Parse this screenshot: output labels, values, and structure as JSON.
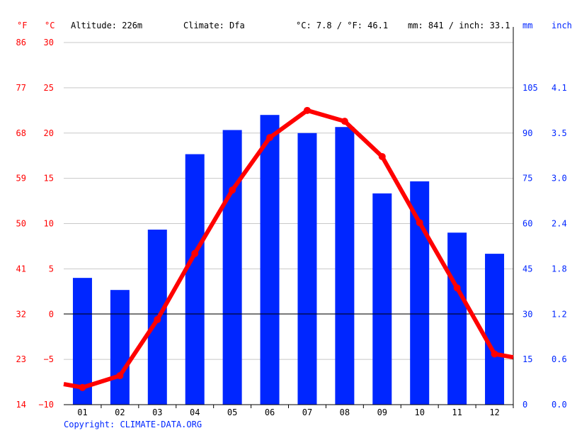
{
  "header": {
    "f_unit": "°F",
    "c_unit": "°C",
    "altitude": "Altitude: 226m",
    "climate": "Climate: Dfa",
    "temp_avg": "°C: 7.8 / °F: 46.1",
    "precip_total": "mm: 841 / inch: 33.1",
    "mm_unit": "mm",
    "inch_unit": "inch"
  },
  "copyright": "Copyright: CLIMATE-DATA.ORG",
  "colors": {
    "temperature": "#ff0000",
    "precipitation": "#0026ff",
    "axis_left": "#ff0000",
    "axis_right": "#0026ff"
  },
  "chart_data": {
    "type": "bar+line",
    "categories": [
      "01",
      "02",
      "03",
      "04",
      "05",
      "06",
      "07",
      "08",
      "09",
      "10",
      "11",
      "12"
    ],
    "series": [
      {
        "type": "bar",
        "unit": "mm",
        "values": [
          42,
          38,
          58,
          83,
          91,
          96,
          90,
          92,
          70,
          74,
          57,
          50
        ]
      },
      {
        "type": "line",
        "unit": "°C",
        "values": [
          -8.1,
          -6.8,
          -0.6,
          6.7,
          13.7,
          19.5,
          22.5,
          21.3,
          17.4,
          10.1,
          2.9,
          -4.4
        ]
      }
    ],
    "y_left_c": {
      "ticks": [
        "30",
        "25",
        "20",
        "15",
        "10",
        "5",
        "0",
        "−5",
        "−10"
      ],
      "range": [
        -10,
        30
      ]
    },
    "y_left_f": {
      "ticks": [
        "86",
        "77",
        "68",
        "59",
        "50",
        "41",
        "32",
        "23",
        "14"
      ]
    },
    "y_right_mm": {
      "ticks": [
        "105",
        "90",
        "75",
        "60",
        "45",
        "30",
        "15",
        "0"
      ],
      "range": [
        0,
        120
      ]
    },
    "y_right_inch": {
      "ticks": [
        "4.1",
        "3.5",
        "3.0",
        "2.4",
        "1.8",
        "1.2",
        "0.6",
        "0.0"
      ]
    },
    "grid": true
  }
}
